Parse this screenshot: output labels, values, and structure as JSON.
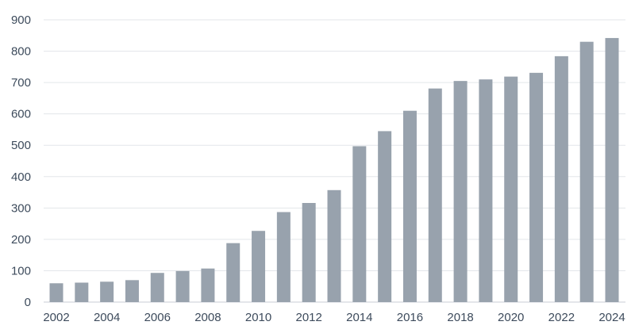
{
  "chart_data": {
    "type": "bar",
    "title": "",
    "xlabel": "",
    "ylabel": "",
    "ylim": [
      0,
      900
    ],
    "yticks": [
      "0",
      "100",
      "200",
      "300",
      "400",
      "500",
      "600",
      "700",
      "800",
      "900"
    ],
    "categories": [
      "2002",
      "2003",
      "2004",
      "2005",
      "2006",
      "2007",
      "2008",
      "2009",
      "2010",
      "2011",
      "2012",
      "2013",
      "2014",
      "2015",
      "2016",
      "2017",
      "2018",
      "2019",
      "2020",
      "2021",
      "2022",
      "2023",
      "2024"
    ],
    "xtick_labels": [
      "2002",
      "",
      "2004",
      "",
      "2006",
      "",
      "2008",
      "",
      "2010",
      "",
      "2012",
      "",
      "2014",
      "",
      "2016",
      "",
      "2018",
      "",
      "2020",
      "",
      "2022",
      "",
      "2024"
    ],
    "values": [
      60,
      62,
      65,
      70,
      93,
      99,
      107,
      188,
      227,
      287,
      316,
      357,
      497,
      545,
      610,
      681,
      705,
      710,
      719,
      731,
      784,
      830,
      842
    ],
    "grid": true,
    "legend": "none"
  },
  "colors": {
    "bar": "#98a2ad",
    "grid": "#e3e6ea",
    "text": "#3d4b5c"
  }
}
